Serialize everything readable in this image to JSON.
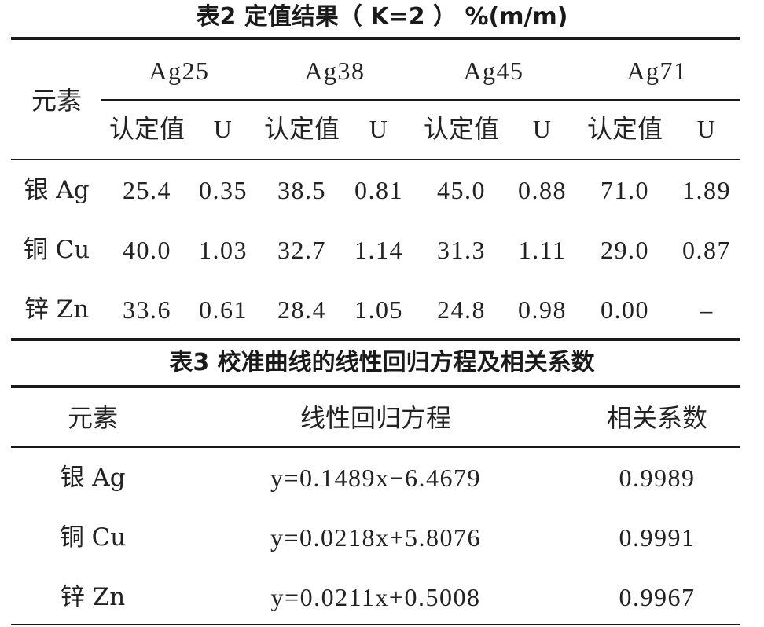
{
  "table2": {
    "caption": "表2 定值结果（ K=2 ） %(m/m)",
    "element_header": "元素",
    "samples": [
      {
        "name": "Ag25",
        "value_label": "认定值",
        "u_label": "U"
      },
      {
        "name": "Ag38",
        "value_label": "认定值",
        "u_label": "U"
      },
      {
        "name": "Ag45",
        "value_label": "认定值",
        "u_label": "U"
      },
      {
        "name": "Ag71",
        "value_label": "认定值",
        "u_label": "U"
      }
    ],
    "rows": [
      {
        "element": "银 Ag",
        "cells": [
          "25.4",
          "0.35",
          "38.5",
          "0.81",
          "45.0",
          "0.88",
          "71.0",
          "1.89"
        ]
      },
      {
        "element": "铜 Cu",
        "cells": [
          "40.0",
          "1.03",
          "32.7",
          "1.14",
          "31.3",
          "1.11",
          "29.0",
          "0.87"
        ]
      },
      {
        "element": "锌 Zn",
        "cells": [
          "33.6",
          "0.61",
          "28.4",
          "1.05",
          "24.8",
          "0.98",
          "0.00",
          "–"
        ]
      }
    ]
  },
  "table3": {
    "caption": "表3 校准曲线的线性回归方程及相关系数",
    "headers": [
      "元素",
      "线性回归方程",
      "相关系数"
    ],
    "rows": [
      {
        "element": "银 Ag",
        "equation": "y=0.1489x−6.4679",
        "coefficient": "0.9989"
      },
      {
        "element": "铜 Cu",
        "equation": "y=0.0218x+5.8076",
        "coefficient": "0.9991"
      },
      {
        "element": "锌 Zn",
        "equation": "y=0.0211x+0.5008",
        "coefficient": "0.9967"
      }
    ]
  }
}
